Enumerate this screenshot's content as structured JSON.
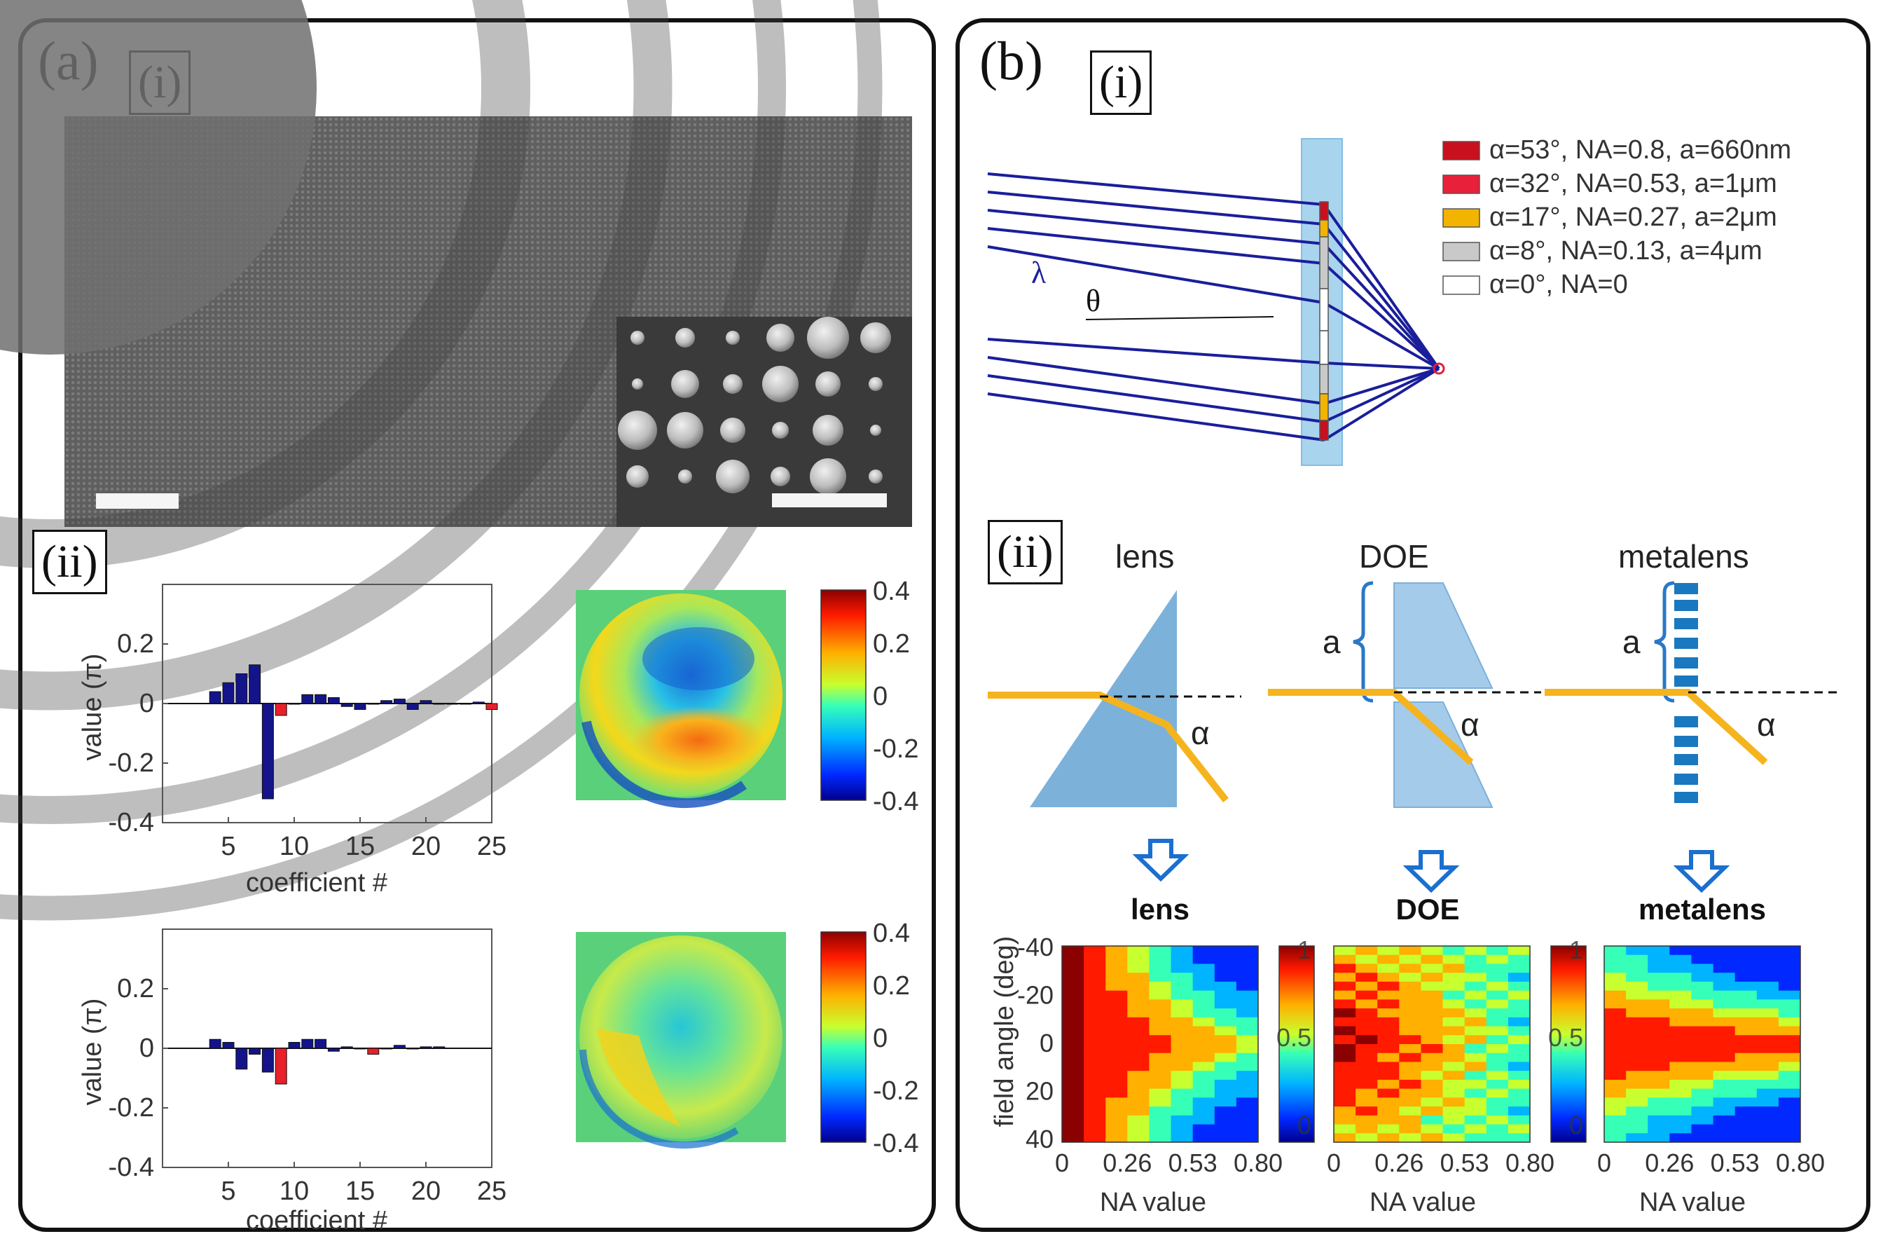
{
  "panel_a": {
    "label": "(a)",
    "sub_i": "(i)",
    "sub_ii": "(ii)",
    "charts_ylabel": "value (π)",
    "charts_xlabel": "coefficient #",
    "colorbar_ticks": [
      "0.4",
      "0.2",
      "0",
      "-0.2",
      "-0.4"
    ]
  },
  "panel_b": {
    "label": "(b)",
    "sub_i": "(i)",
    "sub_ii": "(ii)",
    "lambda": "λ",
    "theta": "θ",
    "legend": [
      {
        "text": "α=53°, NA=0.8, a=660nm",
        "color": "#c8101e"
      },
      {
        "text": "α=32°, NA=0.53, a=1μm",
        "color": "#e8203a"
      },
      {
        "text": "α=17°, NA=0.27, a=2μm",
        "color": "#f2b400"
      },
      {
        "text": "α=8°, NA=0.13, a=4μm",
        "color": "#c9c9c9"
      },
      {
        "text": "α=0°, NA=0",
        "color": "#ffffff"
      }
    ],
    "schematics": [
      {
        "title": "lens"
      },
      {
        "title": "DOE",
        "a": "a",
        "alpha": "α"
      },
      {
        "title": "metalens",
        "a": "a",
        "alpha": "α"
      }
    ],
    "lens_alpha": "α",
    "heatmap_ylabel": "field angle (deg)",
    "heatmap_xlabel": "NA value",
    "heatmap_yticks": [
      "-40",
      "-20",
      "0",
      "20",
      "40"
    ],
    "heatmap_xticks": [
      "0",
      "0.26",
      "0.53",
      "0.80"
    ],
    "cbar_ticks": [
      "1",
      "0.5",
      "0"
    ],
    "heatmap_titles": [
      "lens",
      "DOE",
      "metalens"
    ]
  },
  "chart_data": [
    {
      "type": "bar",
      "ylabel": "value (π)",
      "xlabel": "coefficient #",
      "ylim": [
        -0.4,
        0.4
      ],
      "xlim": [
        0,
        25
      ],
      "x": [
        4,
        5,
        6,
        7,
        8,
        9,
        10,
        11,
        12,
        13,
        14,
        15,
        16,
        17,
        18,
        19,
        20,
        21,
        22,
        23,
        24,
        25
      ],
      "values": [
        0.04,
        0.07,
        0.1,
        0.13,
        -0.32,
        -0.04,
        0.0,
        0.03,
        0.03,
        0.02,
        -0.01,
        -0.02,
        0.0,
        0.01,
        0.015,
        -0.02,
        0.01,
        0.0,
        0.0,
        0.0,
        0.005,
        -0.02
      ],
      "highlight_x": [
        9,
        25
      ],
      "xticks": [
        "5",
        "10",
        "15",
        "20",
        "25"
      ],
      "yticks": [
        "0.2",
        "0",
        "-0.2",
        "-0.4"
      ]
    },
    {
      "type": "bar",
      "ylabel": "value (π)",
      "xlabel": "coefficient #",
      "ylim": [
        -0.4,
        0.4
      ],
      "xlim": [
        0,
        25
      ],
      "x": [
        4,
        5,
        6,
        7,
        8,
        9,
        10,
        11,
        12,
        13,
        14,
        15,
        16,
        17,
        18,
        19,
        20,
        21
      ],
      "values": [
        0.03,
        0.02,
        -0.07,
        -0.02,
        -0.08,
        -0.12,
        0.02,
        0.03,
        0.03,
        -0.01,
        0.005,
        0.0,
        -0.02,
        0.0,
        0.01,
        0.0,
        0.005,
        0.005
      ],
      "highlight_x": [
        9,
        16
      ],
      "xticks": [
        "5",
        "10",
        "15",
        "20",
        "25"
      ],
      "yticks": [
        "0.2",
        "0",
        "-0.2",
        "-0.4"
      ]
    }
  ]
}
